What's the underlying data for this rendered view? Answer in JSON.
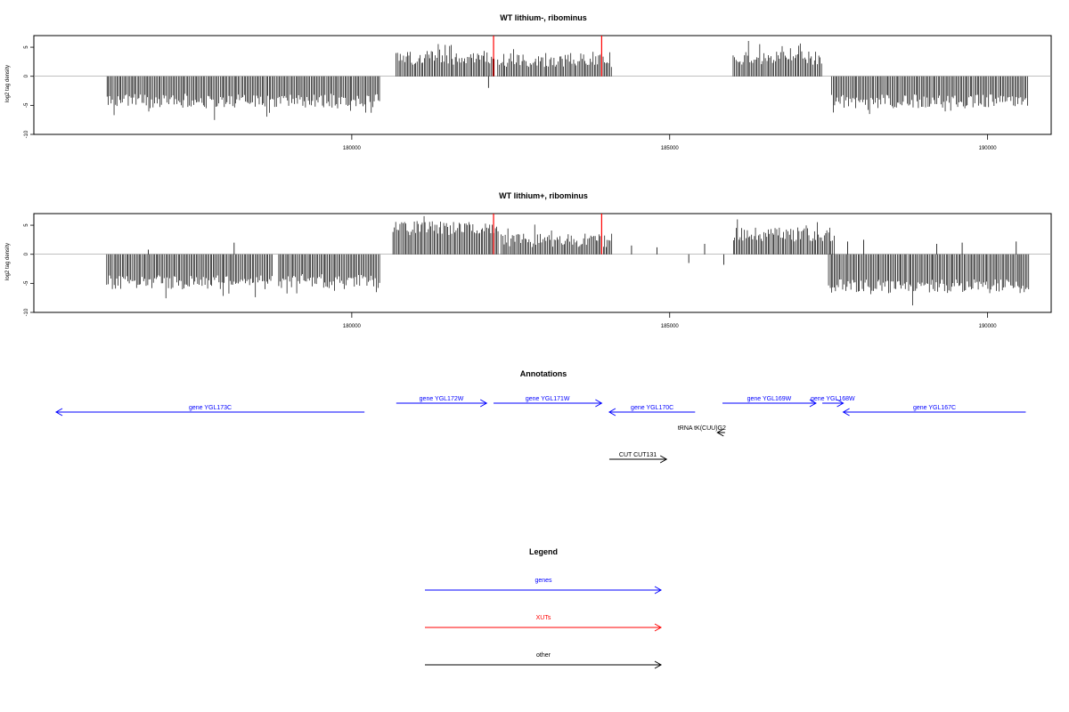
{
  "chart_data": [
    {
      "type": "bar",
      "title": "WT lithium-, ribominus",
      "ylabel": "log2 tag density",
      "xlim": [
        175000,
        191000
      ],
      "ylim": [
        -10,
        7
      ],
      "xticks": [
        180000,
        185000,
        190000
      ],
      "yticks": [
        -10,
        -5,
        0,
        5
      ],
      "series": [
        {
          "strand": "minus",
          "color": "#000000",
          "segments": [
            [
              176150,
              180450,
              -4.2
            ]
          ]
        },
        {
          "strand": "plus",
          "color": "#000000",
          "segments": [
            [
              180700,
              182250,
              3.2
            ],
            [
              182300,
              184100,
              2.8
            ],
            [
              186000,
              187400,
              3.2
            ]
          ]
        },
        {
          "strand": "minus",
          "color": "#000000",
          "segments": [
            [
              187550,
              190650,
              -4.3
            ]
          ]
        }
      ],
      "spikes": [
        {
          "x": 182230,
          "y": 7,
          "color": "#ff0000"
        },
        {
          "x": 183930,
          "y": 7,
          "color": "#ff0000"
        },
        {
          "x": 182150,
          "y": -2,
          "color": "#000000"
        }
      ]
    },
    {
      "type": "bar",
      "title": "WT lithium+, ribominus",
      "ylabel": "log2 tag density",
      "xlim": [
        175000,
        191000
      ],
      "ylim": [
        -10,
        7
      ],
      "xticks": [
        180000,
        185000,
        190000
      ],
      "yticks": [
        -10,
        -5,
        0,
        5
      ],
      "series": [
        {
          "strand": "minus",
          "color": "#000000",
          "segments": [
            [
              176150,
              178750,
              -4.8
            ],
            [
              178850,
              180450,
              -4.6
            ]
          ]
        },
        {
          "strand": "plus",
          "color": "#000000",
          "segments": [
            [
              180650,
              182300,
              4.5
            ],
            [
              182350,
              184100,
              2.4
            ],
            [
              186000,
              187600,
              3.4
            ]
          ]
        },
        {
          "strand": "minus",
          "color": "#000000",
          "segments": [
            [
              187500,
              190650,
              -5.5
            ]
          ]
        }
      ],
      "spikes": [
        {
          "x": 182230,
          "y": 7,
          "color": "#ff0000"
        },
        {
          "x": 183930,
          "y": 7,
          "color": "#ff0000"
        },
        {
          "x": 176800,
          "y": 0.8,
          "color": "#000000"
        },
        {
          "x": 178150,
          "y": 2,
          "color": "#000000"
        },
        {
          "x": 184400,
          "y": 1.5,
          "color": "#000000"
        },
        {
          "x": 184800,
          "y": 1.2,
          "color": "#000000"
        },
        {
          "x": 185550,
          "y": 1.8,
          "color": "#000000"
        },
        {
          "x": 185300,
          "y": -1.5,
          "color": "#000000"
        },
        {
          "x": 185850,
          "y": -1.8,
          "color": "#000000"
        },
        {
          "x": 187800,
          "y": 2.2,
          "color": "#000000"
        },
        {
          "x": 188050,
          "y": 2.5,
          "color": "#000000"
        },
        {
          "x": 189200,
          "y": 1.8,
          "color": "#000000"
        },
        {
          "x": 189600,
          "y": 2,
          "color": "#000000"
        },
        {
          "x": 190450,
          "y": 2.2,
          "color": "#000000"
        }
      ]
    }
  ],
  "annotations": {
    "title": "Annotations",
    "xlim": [
      175000,
      191000
    ],
    "features": [
      {
        "label": "gene YGL173C",
        "start": 175350,
        "end": 180200,
        "strand": "-",
        "row": 1,
        "color": "#0000ff"
      },
      {
        "label": "gene YGL172W",
        "start": 180700,
        "end": 182120,
        "strand": "+",
        "row": 0,
        "color": "#0000ff"
      },
      {
        "label": "gene YGL171W",
        "start": 182230,
        "end": 183930,
        "strand": "+",
        "row": 0,
        "color": "#0000ff"
      },
      {
        "label": "gene YGL170C",
        "start": 184050,
        "end": 185400,
        "strand": "-",
        "row": 1,
        "color": "#0000ff"
      },
      {
        "label": "gene YGL169W",
        "start": 185830,
        "end": 187300,
        "strand": "+",
        "row": 0,
        "color": "#0000ff"
      },
      {
        "label": "gene YGL168W",
        "start": 187400,
        "end": 187730,
        "strand": "+",
        "row": 0,
        "color": "#0000ff"
      },
      {
        "label": "gene YGL167C",
        "start": 187730,
        "end": 190600,
        "strand": "-",
        "row": 1,
        "color": "#0000ff"
      },
      {
        "label": "tRNA tK(CUU)G2",
        "start": 185750,
        "end": 185870,
        "strand": "-",
        "row": 2,
        "color": "#000000"
      },
      {
        "label": "CUT CUT131",
        "start": 184050,
        "end": 184950,
        "strand": "+",
        "row": 3,
        "color": "#000000"
      }
    ]
  },
  "legend": {
    "title": "Legend",
    "items": [
      {
        "label": "genes",
        "color": "#0000ff"
      },
      {
        "label": "XUTs",
        "color": "#ff0000"
      },
      {
        "label": "other",
        "color": "#000000"
      }
    ]
  }
}
